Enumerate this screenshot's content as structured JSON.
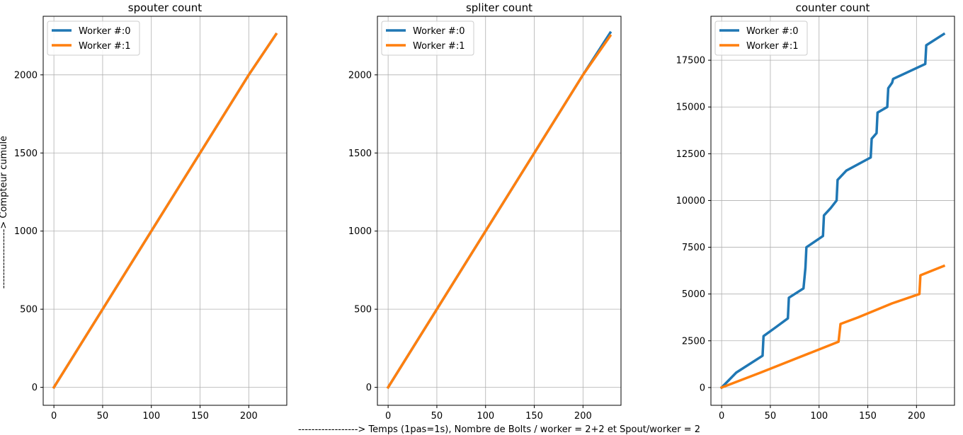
{
  "figure": {
    "xlabel": "------------------> Temps (1pas=1s), Nombre de Bolts / worker = 2+2 et Spout/worker = 2",
    "ylabel": "------------------> Compteur cumulé"
  },
  "colors": {
    "worker0": "#1f77b4",
    "worker1": "#ff7f0e",
    "grid": "#b0b0b0"
  },
  "chart_data": [
    {
      "type": "line",
      "title": "spouter count",
      "xlim": [
        -11,
        239
      ],
      "ylim": [
        -115,
        2375
      ],
      "xticks": [
        0,
        50,
        100,
        150,
        200
      ],
      "yticks": [
        0,
        500,
        1000,
        1500,
        2000
      ],
      "grid": true,
      "legend": "top-left",
      "series": [
        {
          "name": "Worker #:0",
          "x": [
            0,
            50,
            100,
            150,
            200,
            228
          ],
          "y": [
            0,
            500,
            1000,
            1500,
            2000,
            2260
          ]
        },
        {
          "name": "Worker #:1",
          "x": [
            0,
            50,
            100,
            150,
            200,
            228
          ],
          "y": [
            0,
            500,
            1000,
            1500,
            2000,
            2260
          ]
        }
      ]
    },
    {
      "type": "line",
      "title": "spliter count",
      "xlim": [
        -11,
        239
      ],
      "ylim": [
        -115,
        2375
      ],
      "xticks": [
        0,
        50,
        100,
        150,
        200
      ],
      "yticks": [
        0,
        500,
        1000,
        1500,
        2000
      ],
      "grid": true,
      "legend": "top-left",
      "series": [
        {
          "name": "Worker #:0",
          "x": [
            0,
            50,
            100,
            150,
            200,
            228
          ],
          "y": [
            0,
            500,
            1000,
            1500,
            2000,
            2270
          ]
        },
        {
          "name": "Worker #:1",
          "x": [
            0,
            50,
            100,
            150,
            200,
            228
          ],
          "y": [
            0,
            500,
            1000,
            1500,
            2000,
            2250
          ]
        }
      ]
    },
    {
      "type": "line",
      "title": "counter count",
      "xlim": [
        -11,
        239
      ],
      "ylim": [
        -950,
        19850
      ],
      "xticks": [
        0,
        50,
        100,
        150,
        200
      ],
      "yticks": [
        0,
        2500,
        5000,
        7500,
        10000,
        12500,
        15000,
        17500
      ],
      "grid": true,
      "legend": "top-left",
      "series": [
        {
          "name": "Worker #:0",
          "x": [
            0,
            15,
            42,
            43,
            55,
            68,
            69,
            84,
            86,
            87,
            104,
            105,
            112,
            118,
            119,
            128,
            153,
            154,
            159,
            160,
            170,
            171,
            175,
            176,
            209,
            210,
            228
          ],
          "y": [
            0,
            800,
            1700,
            2750,
            3200,
            3700,
            4800,
            5300,
            6400,
            7500,
            8100,
            9200,
            9600,
            10000,
            11100,
            11600,
            12300,
            13300,
            13600,
            14700,
            15000,
            16000,
            16300,
            16500,
            17300,
            18300,
            18900
          ]
        },
        {
          "name": "Worker #:1",
          "x": [
            0,
            40,
            120,
            122,
            140,
            175,
            203,
            204,
            228
          ],
          "y": [
            0,
            800,
            2450,
            3400,
            3750,
            4500,
            5000,
            6000,
            6500
          ]
        }
      ]
    }
  ]
}
